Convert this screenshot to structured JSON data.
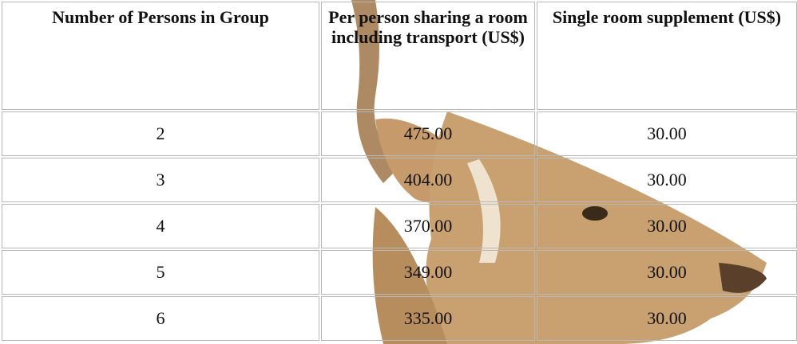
{
  "table": {
    "header": [
      "Number of Persons in Group",
      "Per person sharing a room including transport (US$)",
      "Single room supplement (US$)"
    ],
    "rows": [
      [
        "2",
        "475.00",
        "30.00"
      ],
      [
        "3",
        "404.00",
        "30.00"
      ],
      [
        "4",
        "370.00",
        "30.00"
      ],
      [
        "5",
        "349.00",
        "30.00"
      ],
      [
        "6",
        "335.00",
        "30.00"
      ]
    ]
  }
}
